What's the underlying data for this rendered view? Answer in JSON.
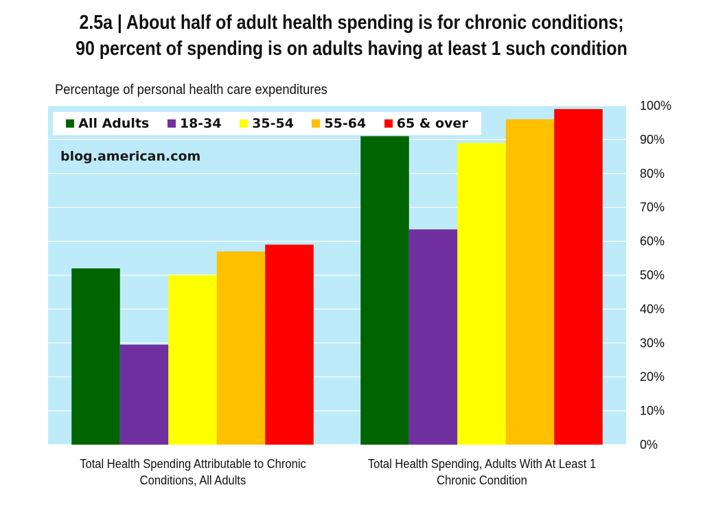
{
  "title_lines": [
    "2.5a | About half of adult health spending is for chronic conditions;",
    "90 percent of spending is on adults having at least 1 such condition"
  ],
  "watermark": "blog.american.com",
  "chart_data": {
    "type": "bar",
    "title": "2.5a | About half of adult health spending is for chronic conditions; 90 percent of spending is on adults having at least 1 such condition",
    "subtitle": "Percentage of personal health care expenditures",
    "categories": [
      "Total Health Spending Attributable to Chronic Conditions, All Adults",
      "Total Health Spending, Adults With At Least 1 Chronic Condition"
    ],
    "category_label_lines": [
      [
        "Total Health Spending Attributable to Chronic",
        "Conditions, All Adults"
      ],
      [
        "Total Health Spending, Adults With At Least 1",
        "Chronic Condition"
      ]
    ],
    "series": [
      {
        "name": "All Adults",
        "color": "#006400",
        "values": [
          52,
          91
        ]
      },
      {
        "name": "18-34",
        "color": "#7030A0",
        "values": [
          29.5,
          63.5
        ]
      },
      {
        "name": "35-54",
        "color": "#FFFF00",
        "values": [
          50,
          89
        ]
      },
      {
        "name": "55-64",
        "color": "#FFC000",
        "values": [
          57,
          96
        ]
      },
      {
        "name": "65 & over",
        "color": "#FF0000",
        "values": [
          59,
          99
        ]
      }
    ],
    "ylim": [
      0,
      100
    ],
    "yticks": [
      0,
      10,
      20,
      30,
      40,
      50,
      60,
      70,
      80,
      90,
      100
    ],
    "ytick_labels": [
      "0%",
      "10%",
      "20%",
      "30%",
      "40%",
      "50%",
      "60%",
      "70%",
      "80%",
      "90%",
      "100%"
    ],
    "y_axis_position": "right",
    "grid": true,
    "plot_background": "#BDEBFA",
    "legend_position": "top-left"
  }
}
